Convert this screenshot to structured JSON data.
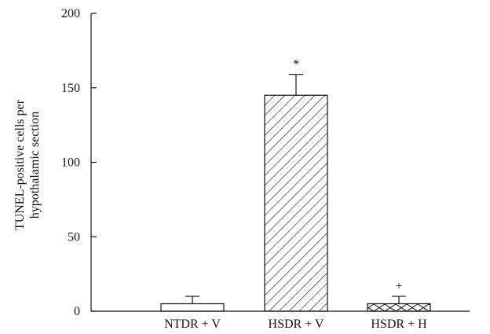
{
  "chart_data": {
    "type": "bar",
    "title": "",
    "xlabel": "",
    "ylabel_lines": [
      "TUNEL-positive cells per",
      "hypothalamic section"
    ],
    "ylim": [
      0,
      200
    ],
    "yticks": [
      0,
      50,
      100,
      150,
      200
    ],
    "categories": [
      "NTDR + V",
      "HSDR + V",
      "HSDR + H"
    ],
    "values": [
      5,
      145,
      5
    ],
    "errors": [
      5,
      14,
      5
    ],
    "annotations": [
      "",
      "*",
      "+"
    ],
    "fills": [
      "none",
      "diagonal-hatch",
      "crosshatch"
    ],
    "grid": false,
    "legend": "none"
  }
}
